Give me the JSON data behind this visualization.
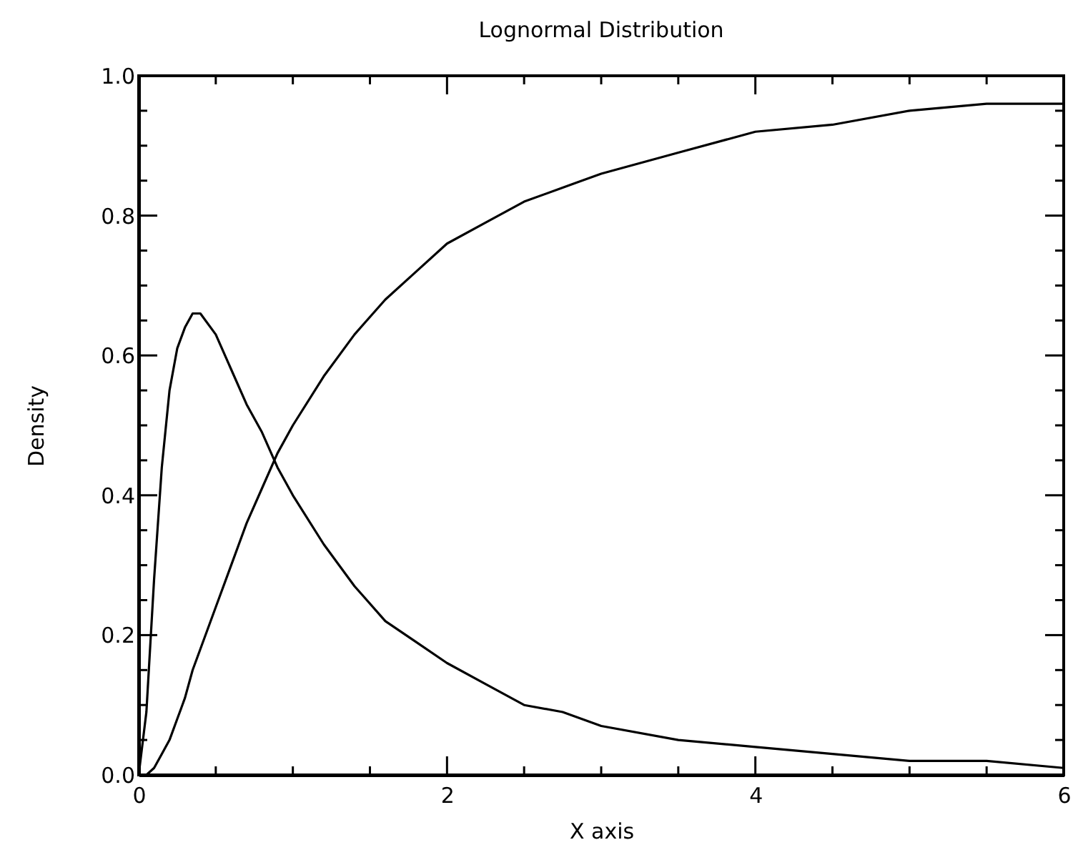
{
  "chart_data": {
    "type": "line",
    "title": "Lognormal Distribution",
    "xlabel": "X axis",
    "ylabel": "Density",
    "x": [
      0,
      0.05,
      0.1,
      0.15,
      0.2,
      0.25,
      0.3,
      0.35,
      0.4,
      0.5,
      0.6,
      0.7,
      0.8,
      0.9,
      1.0,
      1.2,
      1.4,
      1.6,
      1.8,
      2.0,
      2.25,
      2.5,
      2.75,
      3.0,
      3.5,
      4.0,
      4.5,
      5.0,
      5.5,
      6.0
    ],
    "series": [
      {
        "color": "#000000",
        "values": [
          0,
          0.09,
          0.28,
          0.44,
          0.55,
          0.61,
          0.64,
          0.66,
          0.66,
          0.63,
          0.58,
          0.53,
          0.49,
          0.44,
          0.4,
          0.33,
          0.27,
          0.22,
          0.19,
          0.16,
          0.13,
          0.1,
          0.09,
          0.07,
          0.05,
          0.04,
          0.03,
          0.02,
          0.02,
          0.01
        ]
      },
      {
        "color": "#000000",
        "values": [
          0,
          0.0,
          0.01,
          0.03,
          0.05,
          0.08,
          0.11,
          0.15,
          0.18,
          0.24,
          0.3,
          0.36,
          0.41,
          0.46,
          0.5,
          0.57,
          0.63,
          0.68,
          0.72,
          0.76,
          0.79,
          0.82,
          0.84,
          0.86,
          0.89,
          0.92,
          0.93,
          0.95,
          0.96,
          0.96
        ]
      }
    ],
    "xlim": [
      0,
      6
    ],
    "ylim": [
      0,
      1
    ],
    "xticks": [
      0,
      {
        "value": 0.5,
        "label": null
      },
      {
        "value": 1,
        "label": null
      },
      {
        "value": 1.5,
        "label": null
      },
      2,
      {
        "value": 2.5,
        "label": null
      },
      {
        "value": 3,
        "label": null
      },
      {
        "value": 3.5,
        "label": null
      },
      4,
      {
        "value": 4.5,
        "label": null
      },
      {
        "value": 5,
        "label": null
      },
      {
        "value": 5.5,
        "label": null
      },
      6
    ],
    "yticks": [
      {
        "value": 0,
        "label": "0.0"
      },
      {
        "value": 0.05,
        "label": null
      },
      {
        "value": 0.1,
        "label": null
      },
      {
        "value": 0.15,
        "label": null
      },
      0.2,
      {
        "value": 0.25,
        "label": null
      },
      {
        "value": 0.3,
        "label": null
      },
      {
        "value": 0.35,
        "label": null
      },
      0.4,
      {
        "value": 0.45,
        "label": null
      },
      {
        "value": 0.5,
        "label": null
      },
      {
        "value": 0.55,
        "label": null
      },
      0.6,
      {
        "value": 0.65,
        "label": null
      },
      {
        "value": 0.7,
        "label": null
      },
      {
        "value": 0.75,
        "label": null
      },
      0.8,
      {
        "value": 0.85,
        "label": null
      },
      {
        "value": 0.9,
        "label": null
      },
      {
        "value": 0.95,
        "label": null
      },
      {
        "value": 1,
        "label": "1.0"
      }
    ],
    "line_style": "solid"
  }
}
